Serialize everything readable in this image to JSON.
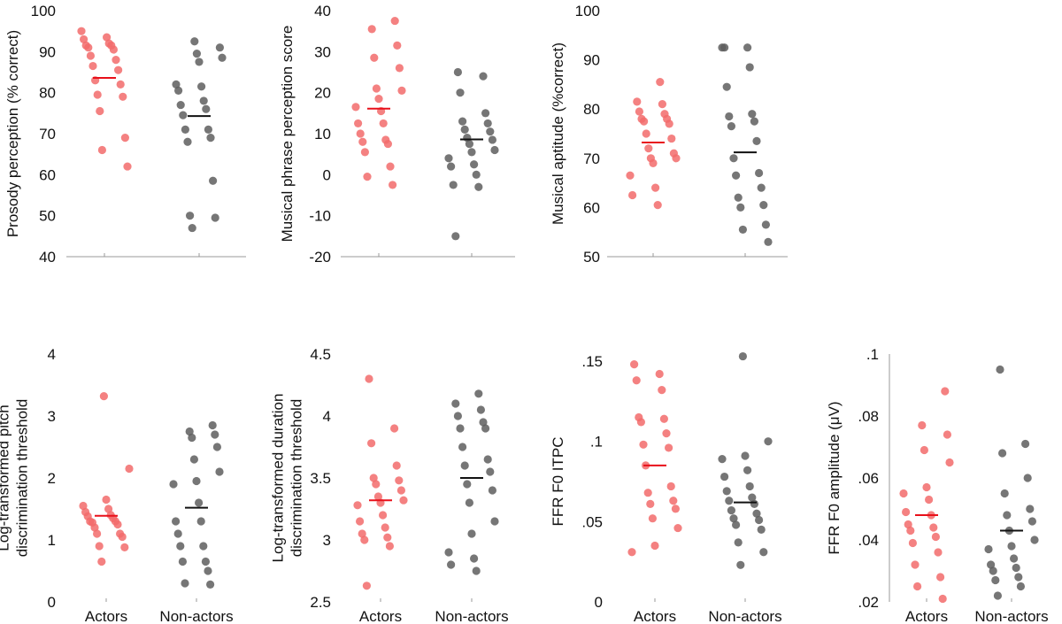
{
  "colors": {
    "actors": "#f26b6b",
    "non_actors": "#5e5e5e",
    "actors_mean": "#e8101a",
    "non_actors_mean": "#111111"
  },
  "chart_data": [
    {
      "type": "scatter",
      "ylabel": [
        "Prosody perception (% correct)"
      ],
      "categories": [],
      "ylim": [
        40,
        100
      ],
      "yticks": [
        40,
        50,
        60,
        70,
        80,
        90,
        100
      ],
      "ytick_labels": [
        "40",
        "50",
        "60",
        "70",
        "80",
        "90",
        "100"
      ],
      "series": [
        {
          "name": "Actors",
          "mean": 83.6,
          "values": [
            95,
            93.5,
            93,
            92,
            91.5,
            91.5,
            91,
            90.5,
            89,
            88,
            86.5,
            85.5,
            83,
            82,
            79.5,
            79,
            75.5,
            69,
            66,
            62
          ]
        },
        {
          "name": "Non-actors",
          "mean": 74.3,
          "values": [
            92.5,
            91,
            89.5,
            88.5,
            87.5,
            82,
            81.5,
            80.5,
            78,
            77,
            76,
            74.5,
            71,
            71,
            69,
            68,
            58.5,
            50,
            49.5,
            47
          ]
        }
      ]
    },
    {
      "type": "scatter",
      "ylabel": [
        "Musical phrase perception score"
      ],
      "categories": [],
      "ylim": [
        -20,
        40
      ],
      "yticks": [
        -20,
        -10,
        0,
        10,
        20,
        30,
        40
      ],
      "ytick_labels": [
        "-20",
        "-10",
        "0",
        "10",
        "20",
        "30",
        "40"
      ],
      "series": [
        {
          "name": "Actors",
          "mean": 16.1,
          "values": [
            37.5,
            35.5,
            31.5,
            28.5,
            26,
            21,
            20.5,
            18.5,
            16.5,
            15.5,
            12.5,
            12.5,
            10,
            8.5,
            8,
            7.5,
            5.5,
            2,
            -0.5,
            -2.5
          ]
        },
        {
          "name": "Non-actors",
          "mean": 8.6,
          "values": [
            25,
            24,
            20,
            15,
            13,
            12.5,
            11,
            10.5,
            9,
            8.5,
            7.5,
            6,
            5.5,
            4,
            2.5,
            2,
            0,
            -2.5,
            -3,
            -15
          ]
        }
      ]
    },
    {
      "type": "scatter",
      "ylabel": [
        "Musical aptitude (%correct)"
      ],
      "categories": [],
      "ylim": [
        50,
        100
      ],
      "yticks": [
        50,
        60,
        70,
        80,
        90,
        100
      ],
      "ytick_labels": [
        "50",
        "60",
        "70",
        "80",
        "90",
        "100"
      ],
      "series": [
        {
          "name": "Actors",
          "mean": 73.2,
          "values": [
            85.5,
            81.5,
            81,
            79.5,
            79,
            78,
            78,
            77.5,
            77,
            75,
            74,
            72,
            71,
            70,
            70,
            69,
            66.5,
            64,
            62.5,
            60.5
          ]
        },
        {
          "name": "Non-actors",
          "mean": 71.2,
          "values": [
            92.5,
            92.5,
            92.5,
            88.5,
            84.5,
            79,
            78.5,
            77.5,
            76.5,
            73.5,
            70,
            67,
            66.5,
            64,
            62,
            60.5,
            60,
            56.5,
            55.5,
            53
          ]
        }
      ]
    },
    {
      "type": "scatter",
      "ylabel": [
        "Log-transformed pitch",
        "discrimination threshold"
      ],
      "categories": [
        "Actors",
        "Non-actors"
      ],
      "ylim": [
        0,
        4
      ],
      "yticks": [
        0,
        1,
        2,
        3,
        4
      ],
      "ytick_labels": [
        "0",
        "1",
        "2",
        "3",
        "4"
      ],
      "series": [
        {
          "name": "Actors",
          "mean": 1.39,
          "values": [
            3.32,
            2.15,
            1.65,
            1.55,
            1.5,
            1.45,
            1.4,
            1.38,
            1.35,
            1.3,
            1.3,
            1.28,
            1.25,
            1.2,
            1.1,
            1.1,
            1.05,
            0.9,
            0.88,
            0.65
          ]
        },
        {
          "name": "Non-actors",
          "mean": 1.52,
          "values": [
            2.85,
            2.75,
            2.7,
            2.65,
            2.5,
            2.3,
            2.1,
            1.95,
            1.9,
            1.6,
            1.3,
            1.3,
            1.1,
            0.9,
            0.9,
            0.65,
            0.65,
            0.5,
            0.3,
            0.28
          ]
        }
      ]
    },
    {
      "type": "scatter",
      "ylabel": [
        "Log-transformed duration",
        "discrimination threshold"
      ],
      "categories": [
        "Actors",
        "Non-actors"
      ],
      "ylim": [
        2.5,
        4.5
      ],
      "yticks": [
        2.5,
        3,
        3.5,
        4,
        4.5
      ],
      "ytick_labels": [
        "2.5",
        "3",
        "3.5",
        "4",
        "4.5"
      ],
      "series": [
        {
          "name": "Actors",
          "mean": 3.32,
          "values": [
            4.3,
            3.9,
            3.78,
            3.6,
            3.5,
            3.48,
            3.45,
            3.4,
            3.35,
            3.32,
            3.3,
            3.28,
            3.2,
            3.15,
            3.1,
            3.05,
            3.02,
            3.0,
            2.95,
            2.63
          ]
        },
        {
          "name": "Non-actors",
          "mean": 3.5,
          "values": [
            4.18,
            4.1,
            4.05,
            4.0,
            3.95,
            3.9,
            3.9,
            3.75,
            3.65,
            3.6,
            3.55,
            3.45,
            3.4,
            3.3,
            3.15,
            3.05,
            2.9,
            2.85,
            2.8,
            2.75
          ]
        }
      ]
    },
    {
      "type": "scatter",
      "ylabel": [
        "FFR F0 ITPC"
      ],
      "categories": [
        "Actors",
        "Non-actors"
      ],
      "ylim": [
        0,
        0.15
      ],
      "yticks": [
        0,
        0.05,
        0.1,
        0.15
      ],
      "ytick_labels": [
        "0",
        ".05",
        ".1",
        ".15"
      ],
      "series": [
        {
          "name": "Actors",
          "mean": 0.085,
          "values": [
            0.148,
            0.142,
            0.138,
            0.132,
            0.115,
            0.114,
            0.112,
            0.105,
            0.098,
            0.096,
            0.085,
            0.072,
            0.068,
            0.063,
            0.061,
            0.058,
            0.052,
            0.046,
            0.035,
            0.031
          ]
        },
        {
          "name": "Non-actors",
          "mean": 0.062,
          "values": [
            0.153,
            0.1,
            0.091,
            0.089,
            0.082,
            0.078,
            0.072,
            0.069,
            0.065,
            0.063,
            0.061,
            0.057,
            0.055,
            0.052,
            0.051,
            0.048,
            0.045,
            0.037,
            0.031,
            0.023
          ]
        }
      ]
    },
    {
      "type": "scatter",
      "ylabel": [
        "FFR F0 amplitude (μV)"
      ],
      "categories": [
        "Actors",
        "Non-actors"
      ],
      "ylim": [
        0.02,
        0.1
      ],
      "yticks": [
        0.02,
        0.04,
        0.06,
        0.08,
        0.1
      ],
      "ytick_labels": [
        ".02",
        ".04",
        ".06",
        ".08",
        ".1"
      ],
      "series": [
        {
          "name": "Actors",
          "mean": 0.048,
          "values": [
            0.088,
            0.077,
            0.074,
            0.069,
            0.065,
            0.057,
            0.055,
            0.053,
            0.049,
            0.048,
            0.045,
            0.044,
            0.043,
            0.041,
            0.039,
            0.036,
            0.032,
            0.028,
            0.025,
            0.021
          ]
        },
        {
          "name": "Non-actors",
          "mean": 0.043,
          "values": [
            0.095,
            0.071,
            0.068,
            0.06,
            0.055,
            0.05,
            0.048,
            0.046,
            0.043,
            0.04,
            0.038,
            0.037,
            0.034,
            0.032,
            0.031,
            0.03,
            0.028,
            0.027,
            0.025,
            0.022
          ]
        }
      ]
    }
  ]
}
